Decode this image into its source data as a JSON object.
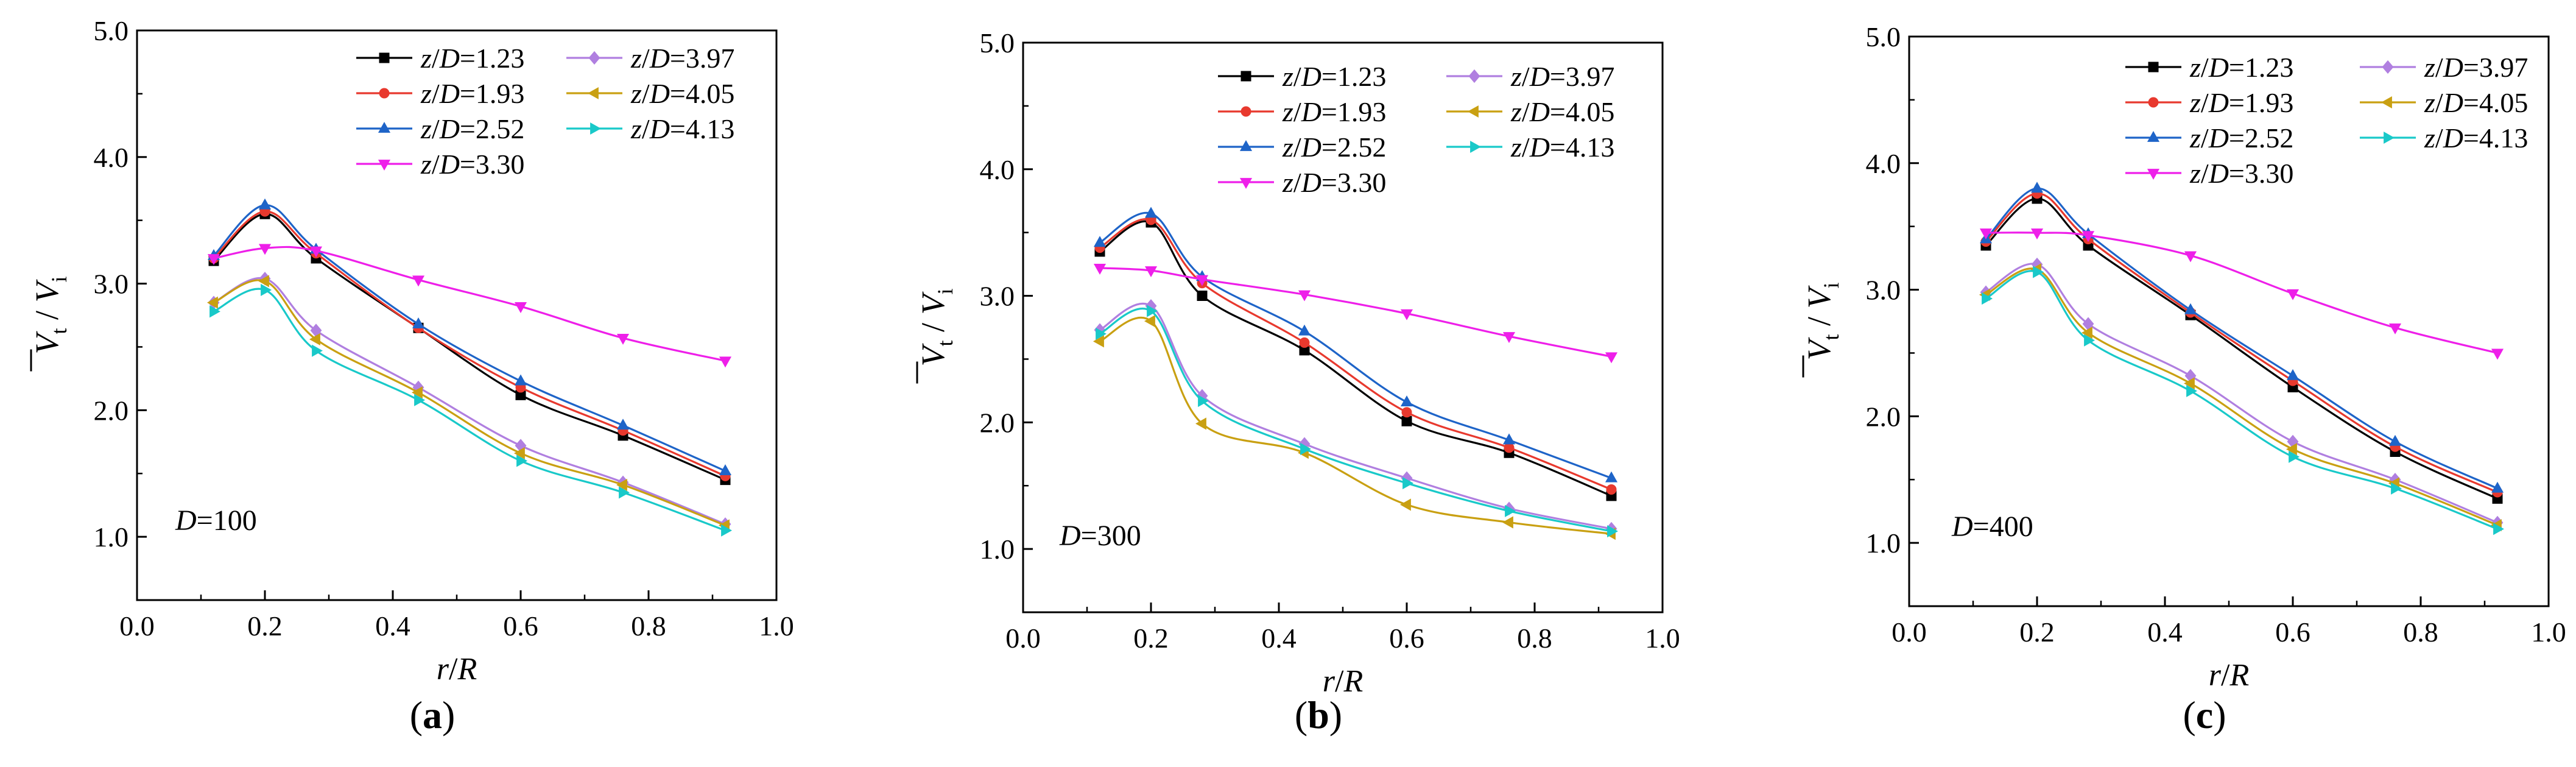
{
  "chart_data": [
    {
      "type": "line",
      "panel_label": "a",
      "annotation": {
        "var": "D",
        "text": "=100"
      },
      "xlabel": {
        "var": "r",
        "slash": "/",
        "var2": "R"
      },
      "ylabel": {
        "var": "V",
        "sub": "t",
        "sep": " / ",
        "var2": "V",
        "sub2": "i",
        "overline": true
      },
      "xlim": [
        0.0,
        1.0
      ],
      "ylim": [
        0.5,
        5.0
      ],
      "xticks": [
        "0.0",
        "0.2",
        "0.4",
        "0.6",
        "0.8",
        "1.0"
      ],
      "xtick_values": [
        0.0,
        0.2,
        0.4,
        0.6,
        0.8,
        1.0
      ],
      "yticks": [
        "1.0",
        "2.0",
        "3.0",
        "4.0",
        "5.0"
      ],
      "ytick_values": [
        1.0,
        2.0,
        3.0,
        4.0,
        5.0
      ],
      "x": [
        0.12,
        0.2,
        0.28,
        0.44,
        0.6,
        0.76,
        0.92
      ],
      "legend_prefix": "z/D=",
      "series": [
        {
          "name": "1.23",
          "color": "#000000",
          "marker": "square",
          "values": [
            3.18,
            3.55,
            3.2,
            2.65,
            2.12,
            1.8,
            1.45
          ]
        },
        {
          "name": "1.93",
          "color": "#e8392e",
          "marker": "circle",
          "values": [
            3.2,
            3.57,
            3.24,
            2.65,
            2.18,
            1.84,
            1.48
          ]
        },
        {
          "name": "2.52",
          "color": "#1e64c8",
          "marker": "triangle-up",
          "values": [
            3.22,
            3.62,
            3.27,
            2.68,
            2.23,
            1.88,
            1.52
          ]
        },
        {
          "name": "3.30",
          "color": "#ee1fe9",
          "marker": "triangle-down",
          "values": [
            3.2,
            3.28,
            3.26,
            3.03,
            2.82,
            2.57,
            2.39
          ]
        },
        {
          "name": "3.97",
          "color": "#b07fe0",
          "marker": "diamond",
          "values": [
            2.85,
            3.04,
            2.63,
            2.18,
            1.72,
            1.43,
            1.1
          ]
        },
        {
          "name": "4.05",
          "color": "#c9a012",
          "marker": "triangle-left",
          "values": [
            2.85,
            3.02,
            2.56,
            2.14,
            1.66,
            1.41,
            1.09
          ]
        },
        {
          "name": "4.13",
          "color": "#19c9c9",
          "marker": "triangle-right",
          "values": [
            2.78,
            2.95,
            2.47,
            2.08,
            1.6,
            1.35,
            1.05
          ]
        }
      ]
    },
    {
      "type": "line",
      "panel_label": "b",
      "annotation": {
        "var": "D",
        "text": "=300"
      },
      "xlabel": {
        "var": "r",
        "slash": "/",
        "var2": "R"
      },
      "ylabel": {
        "var": "V",
        "sub": "t",
        "sep": " / ",
        "var2": "V",
        "sub2": "i",
        "overline": true
      },
      "xlim": [
        0.0,
        1.0
      ],
      "ylim": [
        0.5,
        5.0
      ],
      "xticks": [
        "0.0",
        "0.2",
        "0.4",
        "0.6",
        "0.8",
        "1.0"
      ],
      "xtick_values": [
        0.0,
        0.2,
        0.4,
        0.6,
        0.8,
        1.0
      ],
      "yticks": [
        "1.0",
        "2.0",
        "3.0",
        "4.0",
        "5.0"
      ],
      "ytick_values": [
        1.0,
        2.0,
        3.0,
        4.0,
        5.0
      ],
      "x": [
        0.12,
        0.2,
        0.28,
        0.44,
        0.6,
        0.76,
        0.92
      ],
      "legend_prefix": "z/D=",
      "series": [
        {
          "name": "1.23",
          "color": "#000000",
          "marker": "square",
          "values": [
            3.35,
            3.58,
            3.0,
            2.57,
            2.01,
            1.76,
            1.42
          ]
        },
        {
          "name": "1.93",
          "color": "#e8392e",
          "marker": "circle",
          "values": [
            3.38,
            3.6,
            3.1,
            2.63,
            2.08,
            1.8,
            1.47
          ]
        },
        {
          "name": "2.52",
          "color": "#1e64c8",
          "marker": "triangle-up",
          "values": [
            3.42,
            3.65,
            3.15,
            2.72,
            2.16,
            1.86,
            1.56
          ]
        },
        {
          "name": "3.30",
          "color": "#ee1fe9",
          "marker": "triangle-down",
          "values": [
            3.22,
            3.2,
            3.13,
            3.01,
            2.86,
            2.68,
            2.52
          ]
        },
        {
          "name": "3.97",
          "color": "#b07fe0",
          "marker": "diamond",
          "values": [
            2.73,
            2.92,
            2.21,
            1.83,
            1.56,
            1.32,
            1.16
          ]
        },
        {
          "name": "4.05",
          "color": "#c9a012",
          "marker": "triangle-left",
          "values": [
            2.64,
            2.8,
            1.99,
            1.76,
            1.35,
            1.21,
            1.12
          ]
        },
        {
          "name": "4.13",
          "color": "#19c9c9",
          "marker": "triangle-right",
          "values": [
            2.7,
            2.88,
            2.17,
            1.79,
            1.52,
            1.3,
            1.14
          ]
        }
      ]
    },
    {
      "type": "line",
      "panel_label": "c",
      "annotation": {
        "var": "D",
        "text": "=400"
      },
      "xlabel": {
        "var": "r",
        "slash": "/",
        "var2": "R"
      },
      "ylabel": {
        "var": "V",
        "sub": "t",
        "sep": " / ",
        "var2": "V",
        "sub2": "i",
        "overline": true
      },
      "xlim": [
        0.0,
        1.0
      ],
      "ylim": [
        0.5,
        5.0
      ],
      "xticks": [
        "0.0",
        "0.2",
        "0.4",
        "0.6",
        "0.8",
        "1.0"
      ],
      "xtick_values": [
        0.0,
        0.2,
        0.4,
        0.6,
        0.8,
        1.0
      ],
      "yticks": [
        "1.0",
        "2.0",
        "3.0",
        "4.0",
        "5.0"
      ],
      "ytick_values": [
        1.0,
        2.0,
        3.0,
        4.0,
        5.0
      ],
      "x": [
        0.12,
        0.2,
        0.28,
        0.44,
        0.6,
        0.76,
        0.92
      ],
      "legend_prefix": "z/D=",
      "series": [
        {
          "name": "1.23",
          "color": "#000000",
          "marker": "square",
          "values": [
            3.35,
            3.72,
            3.35,
            2.8,
            2.23,
            1.72,
            1.35
          ]
        },
        {
          "name": "1.93",
          "color": "#e8392e",
          "marker": "circle",
          "values": [
            3.38,
            3.76,
            3.4,
            2.82,
            2.28,
            1.76,
            1.4
          ]
        },
        {
          "name": "2.52",
          "color": "#1e64c8",
          "marker": "triangle-up",
          "values": [
            3.4,
            3.8,
            3.44,
            2.84,
            2.32,
            1.8,
            1.43
          ]
        },
        {
          "name": "3.30",
          "color": "#ee1fe9",
          "marker": "triangle-down",
          "values": [
            3.45,
            3.45,
            3.43,
            3.27,
            2.97,
            2.7,
            2.5
          ]
        },
        {
          "name": "3.97",
          "color": "#b07fe0",
          "marker": "diamond",
          "values": [
            2.98,
            3.2,
            2.73,
            2.32,
            1.8,
            1.5,
            1.16
          ]
        },
        {
          "name": "4.05",
          "color": "#c9a012",
          "marker": "triangle-left",
          "values": [
            2.96,
            3.16,
            2.66,
            2.26,
            1.74,
            1.47,
            1.14
          ]
        },
        {
          "name": "4.13",
          "color": "#19c9c9",
          "marker": "triangle-right",
          "values": [
            2.93,
            3.14,
            2.6,
            2.2,
            1.68,
            1.43,
            1.11
          ]
        }
      ]
    }
  ]
}
